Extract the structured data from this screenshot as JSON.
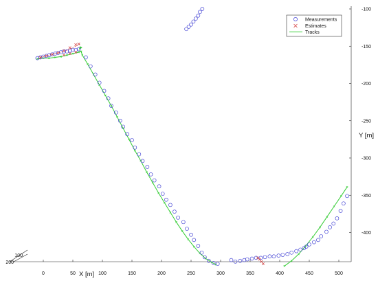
{
  "chart_data": {
    "type": "scatter",
    "title": "",
    "xlabel": "X [m]",
    "ylabel": "Y [m]",
    "xlim": [
      -15,
      515
    ],
    "ylim": [
      -100,
      -445
    ],
    "x_ticks": [
      0,
      50,
      100,
      150,
      200,
      250,
      300,
      350,
      400,
      450,
      500
    ],
    "y_ticks": [
      -100,
      -150,
      -200,
      -250,
      -300,
      -350,
      -400
    ],
    "z_ticks": [
      100,
      200
    ],
    "grid": false,
    "legend_position": "top-right",
    "colors": {
      "measurements": "#4a4ad6",
      "estimates": "#d23c3c",
      "tracks": "#33cc33"
    },
    "series": [
      {
        "name": "Measurements",
        "marker": "circle",
        "points": [
          [
            -10,
            -166
          ],
          [
            -5,
            -165
          ],
          [
            0,
            -164
          ],
          [
            5,
            -163
          ],
          [
            10,
            -162
          ],
          [
            15,
            -161
          ],
          [
            20,
            -160
          ],
          [
            25,
            -159
          ],
          [
            30,
            -158
          ],
          [
            35,
            -157
          ],
          [
            40,
            -157
          ],
          [
            45,
            -156
          ],
          [
            50,
            -155
          ],
          [
            55,
            -155
          ],
          [
            60,
            -154
          ],
          [
            72,
            -165
          ],
          [
            80,
            -177
          ],
          [
            88,
            -188
          ],
          [
            95,
            -199
          ],
          [
            103,
            -210
          ],
          [
            110,
            -220
          ],
          [
            115,
            -230
          ],
          [
            123,
            -239
          ],
          [
            130,
            -250
          ],
          [
            135,
            -258
          ],
          [
            142,
            -268
          ],
          [
            150,
            -276
          ],
          [
            155,
            -286
          ],
          [
            162,
            -295
          ],
          [
            168,
            -304
          ],
          [
            176,
            -312
          ],
          [
            182,
            -322
          ],
          [
            188,
            -330
          ],
          [
            196,
            -338
          ],
          [
            202,
            -348
          ],
          [
            208,
            -356
          ],
          [
            215,
            -363
          ],
          [
            222,
            -372
          ],
          [
            228,
            -380
          ],
          [
            237,
            -386
          ],
          [
            243,
            -395
          ],
          [
            250,
            -403
          ],
          [
            255,
            -410
          ],
          [
            262,
            -418
          ],
          [
            268,
            -427
          ],
          [
            273,
            -433
          ],
          [
            280,
            -438
          ],
          [
            288,
            -441
          ],
          [
            295,
            -442
          ],
          [
            242,
            -127
          ],
          [
            246,
            -124
          ],
          [
            250,
            -121
          ],
          [
            254,
            -117
          ],
          [
            258,
            -113
          ],
          [
            262,
            -109
          ],
          [
            265,
            -104
          ],
          [
            269,
            -100
          ],
          [
            318,
            -437
          ],
          [
            325,
            -439
          ],
          [
            333,
            -438
          ],
          [
            340,
            -437
          ],
          [
            345,
            -436
          ],
          [
            353,
            -435
          ],
          [
            360,
            -434
          ],
          [
            368,
            -434
          ],
          [
            375,
            -433
          ],
          [
            383,
            -432
          ],
          [
            390,
            -432
          ],
          [
            398,
            -431
          ],
          [
            405,
            -430
          ],
          [
            413,
            -429
          ],
          [
            420,
            -427
          ],
          [
            428,
            -425
          ],
          [
            435,
            -423
          ],
          [
            441,
            -421
          ],
          [
            445,
            -419
          ],
          [
            450,
            -416
          ],
          [
            458,
            -413
          ],
          [
            465,
            -410
          ],
          [
            470,
            -405
          ],
          [
            479,
            -399
          ],
          [
            485,
            -393
          ],
          [
            491,
            -388
          ],
          [
            497,
            -381
          ],
          [
            503,
            -371
          ],
          [
            508,
            -361
          ],
          [
            514,
            -351
          ]
        ]
      },
      {
        "name": "Estimates",
        "marker": "x",
        "points": [
          [
            -5,
            -165
          ],
          [
            5,
            -163
          ],
          [
            15,
            -161
          ],
          [
            25,
            -159
          ],
          [
            35,
            -156
          ],
          [
            45,
            -152
          ],
          [
            55,
            -148
          ],
          [
            60,
            -147
          ],
          [
            35,
            -162
          ],
          [
            45,
            -160
          ],
          [
            55,
            -158
          ],
          [
            363,
            -434
          ],
          [
            366,
            -436
          ],
          [
            369,
            -439
          ],
          [
            372,
            -442
          ]
        ]
      },
      {
        "name": "Tracks",
        "marker": "line-x",
        "line": [
          [
            -10,
            -167
          ],
          [
            0,
            -166
          ],
          [
            10,
            -166
          ],
          [
            20,
            -165
          ],
          [
            30,
            -164
          ],
          [
            40,
            -162
          ],
          [
            50,
            -160
          ],
          [
            60,
            -158
          ],
          [
            64,
            -157
          ],
          [
            66,
            -162
          ],
          [
            75,
            -174
          ],
          [
            85,
            -188
          ],
          [
            95,
            -202
          ],
          [
            105,
            -216
          ],
          [
            115,
            -230
          ],
          [
            125,
            -245
          ],
          [
            135,
            -260
          ],
          [
            145,
            -275
          ],
          [
            155,
            -290
          ],
          [
            165,
            -304
          ],
          [
            175,
            -319
          ],
          [
            185,
            -333
          ],
          [
            195,
            -347
          ],
          [
            205,
            -360
          ],
          [
            215,
            -373
          ],
          [
            225,
            -386
          ],
          [
            235,
            -398
          ],
          [
            245,
            -409
          ],
          [
            255,
            -419
          ],
          [
            265,
            -428
          ],
          [
            275,
            -435
          ],
          [
            285,
            -440
          ],
          [
            292,
            -443
          ]
        ],
        "line2": [
          [
            408,
            -445
          ],
          [
            420,
            -438
          ],
          [
            432,
            -429
          ],
          [
            444,
            -418
          ],
          [
            456,
            -406
          ],
          [
            468,
            -393
          ],
          [
            480,
            -379
          ],
          [
            492,
            -365
          ],
          [
            504,
            -351
          ],
          [
            514,
            -339
          ]
        ]
      }
    ]
  }
}
